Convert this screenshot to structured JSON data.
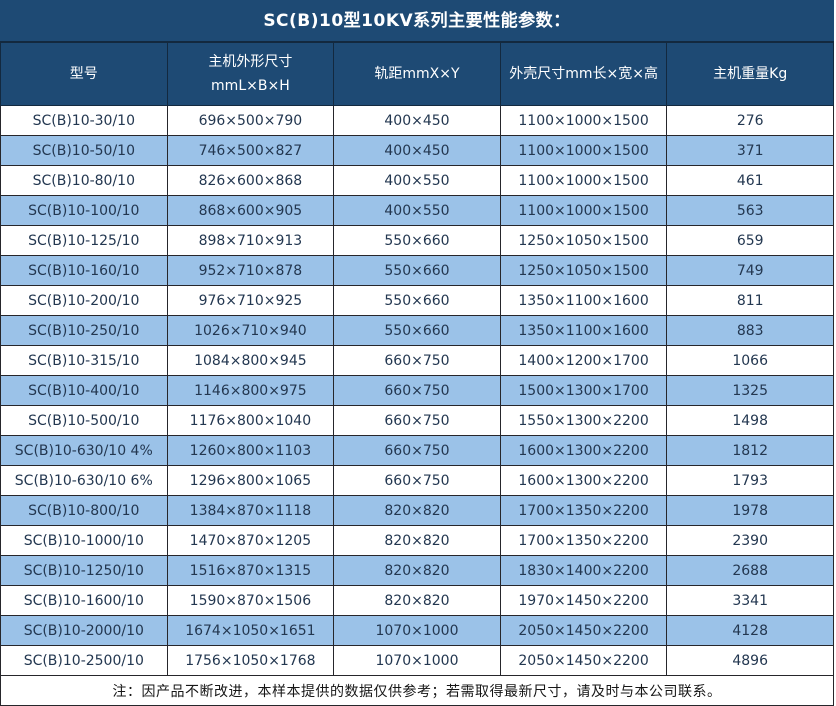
{
  "title": "SC(B)10型10KV系列主要性能参数：",
  "table": {
    "columns": [
      {
        "id": "model",
        "lines": [
          "型号"
        ]
      },
      {
        "id": "host-dimensions",
        "lines": [
          "主机外形尺寸",
          "mmL×B×H"
        ]
      },
      {
        "id": "rail-gauge",
        "lines": [
          "轨距mmX×Y"
        ]
      },
      {
        "id": "enclosure-size",
        "lines": [
          "外壳尺寸mm长×宽×高"
        ]
      },
      {
        "id": "host-weight",
        "lines": [
          "主机重量Kg"
        ]
      }
    ],
    "rows": [
      [
        "SC(B)10-30/10",
        "696×500×790",
        "400×450",
        "1100×1000×1500",
        "276"
      ],
      [
        "SC(B)10-50/10",
        "746×500×827",
        "400×450",
        "1100×1000×1500",
        "371"
      ],
      [
        "SC(B)10-80/10",
        "826×600×868",
        "400×550",
        "1100×1000×1500",
        "461"
      ],
      [
        "SC(B)10-100/10",
        "868×600×905",
        "400×550",
        "1100×1000×1500",
        "563"
      ],
      [
        "SC(B)10-125/10",
        "898×710×913",
        "550×660",
        "1250×1050×1500",
        "659"
      ],
      [
        "SC(B)10-160/10",
        "952×710×878",
        "550×660",
        "1250×1050×1500",
        "749"
      ],
      [
        "SC(B)10-200/10",
        "976×710×925",
        "550×660",
        "1350×1100×1600",
        "811"
      ],
      [
        "SC(B)10-250/10",
        "1026×710×940",
        "550×660",
        "1350×1100×1600",
        "883"
      ],
      [
        "SC(B)10-315/10",
        "1084×800×945",
        "660×750",
        "1400×1200×1700",
        "1066"
      ],
      [
        "SC(B)10-400/10",
        "1146×800×975",
        "660×750",
        "1500×1300×1700",
        "1325"
      ],
      [
        "SC(B)10-500/10",
        "1176×800×1040",
        "660×750",
        "1550×1300×2200",
        "1498"
      ],
      [
        "SC(B)10-630/10 4%",
        "1260×800×1103",
        "660×750",
        "1600×1300×2200",
        "1812"
      ],
      [
        "SC(B)10-630/10 6%",
        "1296×800×1065",
        "660×750",
        "1600×1300×2200",
        "1793"
      ],
      [
        "SC(B)10-800/10",
        "1384×870×1118",
        "820×820",
        "1700×1350×2200",
        "1978"
      ],
      [
        "SC(B)10-1000/10",
        "1470×870×1205",
        "820×820",
        "1700×1350×2200",
        "2390"
      ],
      [
        "SC(B)10-1250/10",
        "1516×870×1315",
        "820×820",
        "1830×1400×2200",
        "2688"
      ],
      [
        "SC(B)10-1600/10",
        "1590×870×1506",
        "820×820",
        "1970×1450×2200",
        "3341"
      ],
      [
        "SC(B)10-2000/10",
        "1674×1050×1651",
        "1070×1000",
        "2050×1450×2200",
        "4128"
      ],
      [
        "SC(B)10-2500/10",
        "1756×1050×1768",
        "1070×1000",
        "2050×1450×2200",
        "4896"
      ]
    ]
  },
  "footer_note": "注：因产品不断改进，本样本提供的数据仅供参考；若需取得最新尺寸，请及时与本公司联系。",
  "colors": {
    "header_bg": "#1E4A74",
    "row_alt_bg": "#9BC2E8",
    "row_bg": "#FFFFFF",
    "border": "#26262B",
    "header_text": "#FFFFFF",
    "cell_text": "#233750",
    "note_text": "#161616"
  }
}
